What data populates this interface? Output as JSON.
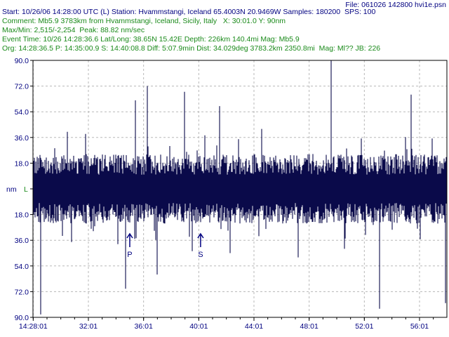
{
  "header": {
    "file": "File: 061026 142800 hvi1e.psn",
    "start": "Start: 10/26/06 14:28:00 UTC (L) Station: Hvammstangi, Iceland 65.4003N 20.9469W Samples: 180200  SPS: 100",
    "comment": "Comment: Mb5.9 3783km from Hvammstangi, Iceland, Sicily, Italy   X: 30:01.0 Y: 90nm",
    "maxmin": "Max/Min: 2,515/-2,254  Peak: 88.82 nm/sec",
    "event": "Event Time: 10/26 14:28:36.6 Lat/Long: 38.65N 15.42E Depth: 226km 140.4mi Mag: Mb5.9",
    "origin": "Org: 14:28:36.5 P: 14:35:00.9 S: 14:40:08.8 Diff: 5:07.9min Dist: 34.029deg 3783.2km 2350.8mi  Mag: Ml?? JB: 226"
  },
  "colors": {
    "trace": "#0a0a4a",
    "text_green": "#1a8a1a",
    "text_blue": "#000080",
    "grid": "#b8b8b8",
    "axis": "#000000"
  },
  "chart_data": {
    "type": "line",
    "ylabel": "nm",
    "baseline_marker": "L",
    "y_ticks": [
      "90.0",
      "72.0",
      "54.0",
      "36.0",
      "18.0",
      "0",
      "18.0",
      "36.0",
      "54.0",
      "72.0",
      "90.0"
    ],
    "y_tick_values": [
      90,
      72,
      54,
      36,
      18,
      0,
      -18,
      -36,
      -54,
      -72,
      -90
    ],
    "ylim": [
      -90,
      90
    ],
    "x_ticks": [
      "14:28:01",
      "32:01",
      "36:01",
      "40:01",
      "44:01",
      "48:01",
      "52:01",
      "56:01"
    ],
    "x_tick_minutes": [
      28.0167,
      32.0167,
      36.0167,
      40.0167,
      44.0167,
      48.0167,
      52.0167,
      56.0167
    ],
    "xlim_minutes": [
      28.0,
      58.0
    ],
    "markers": [
      {
        "label": "P",
        "minute": 35.015
      },
      {
        "label": "S",
        "minute": 40.147
      }
    ],
    "series": [
      {
        "noise_amplitude": 18,
        "spikes": [
          {
            "minute": 28.55,
            "value": -88
          },
          {
            "minute": 30.5,
            "value": 40
          },
          {
            "minute": 34.7,
            "value": -70
          },
          {
            "minute": 35.4,
            "value": 62
          },
          {
            "minute": 36.3,
            "value": 72
          },
          {
            "minute": 37.0,
            "value": -60
          },
          {
            "minute": 39.0,
            "value": 68
          },
          {
            "minute": 41.5,
            "value": 58
          },
          {
            "minute": 42.3,
            "value": -45
          },
          {
            "minute": 44.6,
            "value": 42
          },
          {
            "minute": 47.2,
            "value": -48
          },
          {
            "minute": 49.6,
            "value": 90
          },
          {
            "minute": 50.6,
            "value": -42
          },
          {
            "minute": 53.1,
            "value": -84
          },
          {
            "minute": 55.4,
            "value": 66
          },
          {
            "minute": 57.9,
            "value": -80
          }
        ]
      }
    ]
  }
}
